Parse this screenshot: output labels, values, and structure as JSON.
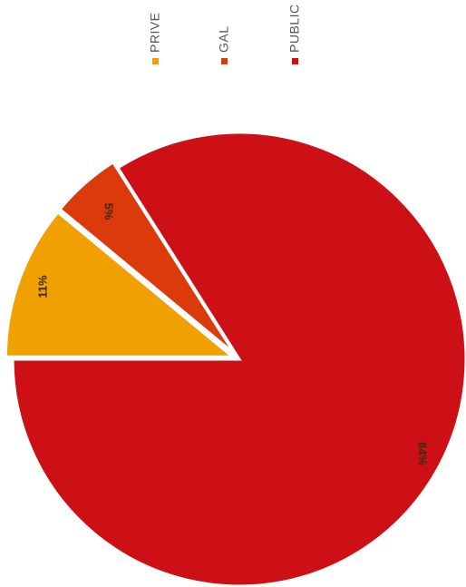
{
  "chart_data": {
    "type": "pie",
    "title": "",
    "slices": [
      {
        "label": "PRIVE",
        "value": 11,
        "display": "11%",
        "color": "#f0a000"
      },
      {
        "label": "GAL",
        "value": 5,
        "display": "5%",
        "color": "#db3a0a"
      },
      {
        "label": "PUBLIC",
        "value": 84,
        "display": "84%",
        "color": "#cc1016"
      }
    ],
    "legend": {
      "placement": "top",
      "items": [
        {
          "label": "PRIVE",
          "color": "#f0a000"
        },
        {
          "label": "GAL",
          "color": "#db3a0a"
        },
        {
          "label": "PUBLIC",
          "color": "#cc1016"
        }
      ]
    },
    "rotation": "image rotated 90 degrees clockwise",
    "exploded": true
  }
}
